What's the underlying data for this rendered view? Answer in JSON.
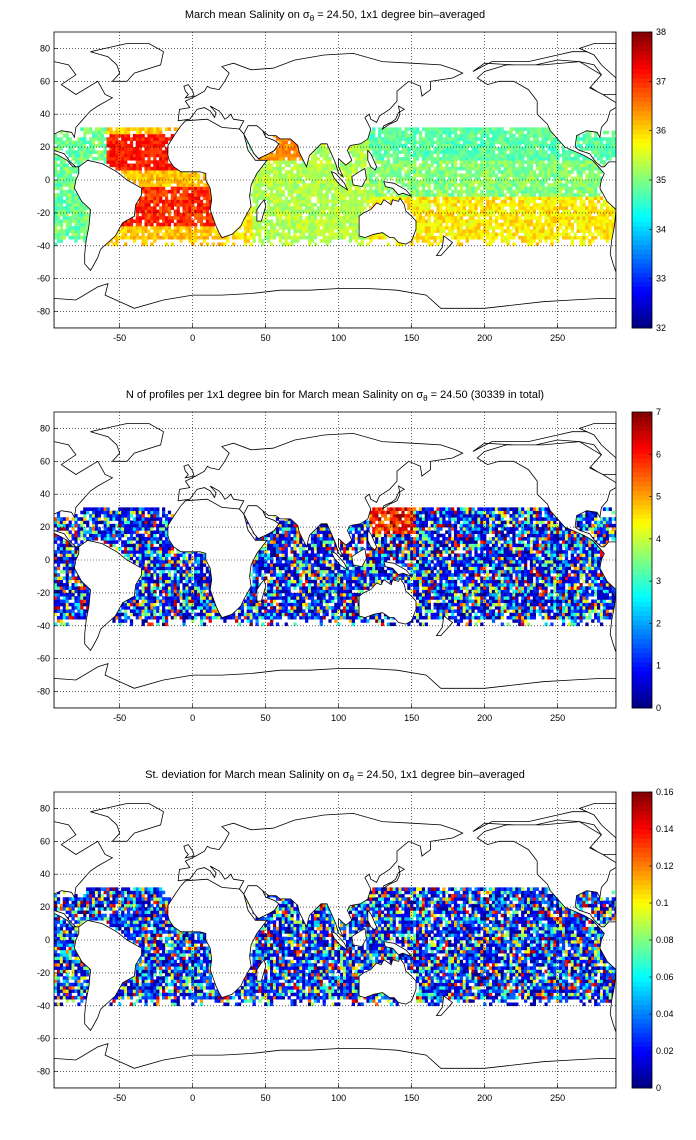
{
  "chart_data": [
    {
      "type": "heatmap",
      "title_prefix": "March mean Salinity on ",
      "title_symbol": "σ",
      "title_subscript": "θ",
      "title_suffix": " = 24.50, 1x1 degree bin–averaged",
      "xlim": [
        -95,
        290
      ],
      "ylim": [
        -90,
        90
      ],
      "xticks": [
        "-50",
        "0",
        "50",
        "100",
        "150",
        "200",
        "250"
      ],
      "xtick_values": [
        -50,
        0,
        50,
        100,
        150,
        200,
        250
      ],
      "yticks": [
        "80",
        "60",
        "40",
        "20",
        "0",
        "-20",
        "-40",
        "-60",
        "-80"
      ],
      "ytick_values": [
        80,
        60,
        40,
        20,
        0,
        -20,
        -40,
        -60,
        -80
      ],
      "grid": true,
      "colorbar": {
        "range": [
          32,
          38
        ],
        "ticks": [
          "38",
          "37",
          "36",
          "35",
          "34",
          "33",
          "32"
        ],
        "tick_values": [
          38,
          37,
          36,
          35,
          34,
          33,
          32
        ],
        "colormap": "jet"
      },
      "data_extent_lat": [
        -40,
        30
      ],
      "field": "salinity",
      "typical_values": {
        "subtropical_atlantic": 37,
        "tropical_pacific": 34.7,
        "south_pacific": 35.8,
        "north_pacific": 34.5
      }
    },
    {
      "type": "heatmap",
      "title_prefix": "N of profiles per 1x1 degree bin for March mean Salinity on ",
      "title_symbol": "σ",
      "title_subscript": "θ",
      "title_suffix": " = 24.50 (30339 in total)",
      "xlim": [
        -95,
        290
      ],
      "ylim": [
        -90,
        90
      ],
      "xticks": [
        "-50",
        "0",
        "50",
        "100",
        "150",
        "200",
        "250"
      ],
      "xtick_values": [
        -50,
        0,
        50,
        100,
        150,
        200,
        250
      ],
      "yticks": [
        "80",
        "60",
        "40",
        "20",
        "0",
        "-20",
        "-40",
        "-60",
        "-80"
      ],
      "ytick_values": [
        80,
        60,
        40,
        20,
        0,
        -20,
        -40,
        -60,
        -80
      ],
      "grid": true,
      "colorbar": {
        "range": [
          0,
          7
        ],
        "ticks": [
          "7",
          "6",
          "5",
          "4",
          "3",
          "2",
          "1",
          "0"
        ],
        "tick_values": [
          7,
          6,
          5,
          4,
          3,
          2,
          1,
          0
        ],
        "colormap": "jet"
      },
      "data_extent_lat": [
        -40,
        30
      ],
      "field": "count",
      "total_profiles": 30339
    },
    {
      "type": "heatmap",
      "title_prefix": "St. deviation for March mean Salinity on ",
      "title_symbol": "σ",
      "title_subscript": "θ",
      "title_suffix": " = 24.50, 1x1 degree bin–averaged",
      "xlim": [
        -95,
        290
      ],
      "ylim": [
        -90,
        90
      ],
      "xticks": [
        "-50",
        "0",
        "50",
        "100",
        "150",
        "200",
        "250"
      ],
      "xtick_values": [
        -50,
        0,
        50,
        100,
        150,
        200,
        250
      ],
      "yticks": [
        "80",
        "60",
        "40",
        "20",
        "0",
        "-20",
        "-40",
        "-60",
        "-80"
      ],
      "ytick_values": [
        80,
        60,
        40,
        20,
        0,
        -20,
        -40,
        -60,
        -80
      ],
      "grid": true,
      "colorbar": {
        "range": [
          0,
          0.16
        ],
        "ticks": [
          "0.16",
          "0.14",
          "0.12",
          "0.1",
          "0.08",
          "0.06",
          "0.04",
          "0.02",
          "0"
        ],
        "tick_values": [
          0.16,
          0.14,
          0.12,
          0.1,
          0.08,
          0.06,
          0.04,
          0.02,
          0
        ],
        "colormap": "jet"
      },
      "data_extent_lat": [
        -40,
        30
      ],
      "field": "stdev"
    }
  ]
}
